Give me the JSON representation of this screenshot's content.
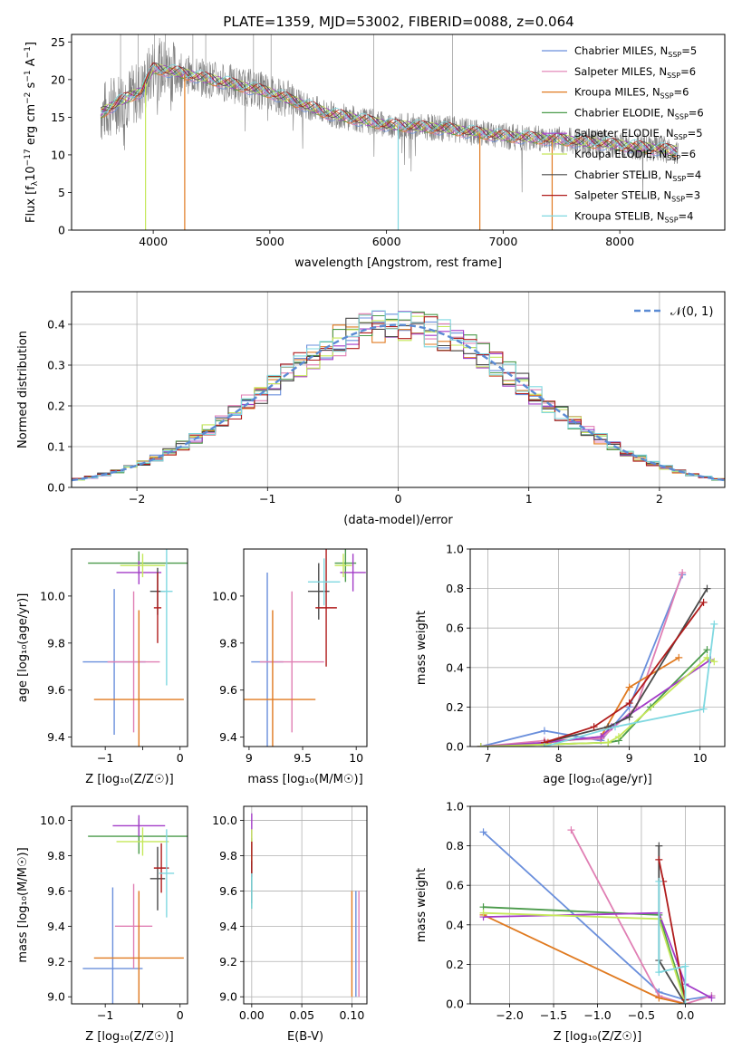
{
  "figure": {
    "title": "PLATE=1359, MJD=53002, FIBERID=0088, z=0.064"
  },
  "series_legend": [
    {
      "name": "Chabrier MILES",
      "nssp": "5",
      "color": "#6a8fdc"
    },
    {
      "name": "Salpeter MILES",
      "nssp": "6",
      "color": "#e07fb4"
    },
    {
      "name": "Kroupa MILES",
      "nssp": "6",
      "color": "#e07a20"
    },
    {
      "name": "Chabrier ELODIE",
      "nssp": "6",
      "color": "#4a9a4a"
    },
    {
      "name": "Salpeter ELODIE",
      "nssp": "5",
      "color": "#a33cc8"
    },
    {
      "name": "Kroupa ELODIE",
      "nssp": "6",
      "color": "#c5e85a"
    },
    {
      "name": "Chabrier STELIB",
      "nssp": "4",
      "color": "#4a4a4a"
    },
    {
      "name": "Salpeter STELIB",
      "nssp": "3",
      "color": "#b01c1c"
    },
    {
      "name": "Kroupa STELIB",
      "nssp": "4",
      "color": "#7fd8e0"
    }
  ],
  "chart_data": [
    {
      "id": "spectrum",
      "type": "line",
      "title": "PLATE=1359, MJD=53002, FIBERID=0088, z=0.064",
      "xlabel": "wavelength [Angstrom, rest frame]",
      "ylabel_parts": [
        "Flux [f",
        "λ",
        "10",
        "−17",
        " erg cm",
        "−2",
        " s",
        "−1",
        " A",
        "−1",
        "]"
      ],
      "xlim": [
        3300,
        8900
      ],
      "ylim": [
        0,
        26
      ],
      "xticks": [
        4000,
        5000,
        6000,
        7000,
        8000
      ],
      "yticks": [
        0,
        5,
        10,
        15,
        20,
        25
      ],
      "grid": false,
      "legend_position": "top-right",
      "observed_color": "#808080",
      "continuum_anchors": {
        "x": [
          3550,
          3700,
          3900,
          4000,
          4200,
          4500,
          5000,
          5500,
          6000,
          6500,
          7000,
          7500,
          8000,
          8500
        ],
        "y": [
          15.5,
          17,
          18.5,
          21.5,
          21,
          20,
          18.3,
          15.5,
          14,
          13.5,
          12.5,
          12,
          11.3,
          10.5
        ]
      },
      "absorption_dips": [
        {
          "x": 3934,
          "series": "Kroupa ELODIE"
        },
        {
          "x": 4270,
          "series": "Kroupa MILES"
        },
        {
          "x": 6100,
          "series": "Kroupa STELIB"
        },
        {
          "x": 6800,
          "series": "Kroupa MILES"
        },
        {
          "x": 7420,
          "series": "Kroupa MILES"
        }
      ]
    },
    {
      "id": "residuals",
      "type": "histogram",
      "xlabel": "(data-model)/error",
      "ylabel": "Normed distribution",
      "xlim": [
        -2.5,
        2.5
      ],
      "ylim": [
        0,
        0.48
      ],
      "xticks": [
        -2,
        -1,
        0,
        1,
        2
      ],
      "yticks": [
        0.0,
        0.1,
        0.2,
        0.3,
        0.4
      ],
      "grid": true,
      "legend_position": "top-right",
      "reference_curve_label": "𝒩(0, 1)",
      "reference_curve_color": "#5b8bd4",
      "bin_width": 0.1
    },
    {
      "id": "age-vs-Z",
      "type": "scatter",
      "xlabel": "Z [log₁₀(Z/Z☉)]",
      "ylabel": "age  [log₁₀(age/yr)]",
      "xlim": [
        -1.45,
        0.1
      ],
      "ylim": [
        9.36,
        10.2
      ],
      "xticks": [
        -1,
        -0.5,
        0
      ],
      "xticklabels": [
        "−1",
        "",
        "0"
      ],
      "yticks": [
        9.4,
        9.6,
        9.8,
        10.0
      ],
      "grid": false,
      "points": [
        {
          "series": "Chabrier MILES",
          "x": -0.88,
          "y": 9.72,
          "xerr": 0.42,
          "yerr": 0.31
        },
        {
          "series": "Salpeter MILES",
          "x": -0.62,
          "y": 9.72,
          "xerr": 0.35,
          "yerr": 0.3
        },
        {
          "series": "Kroupa MILES",
          "x": -0.55,
          "y": 9.56,
          "xerr": 0.6,
          "yerr": 0.38
        },
        {
          "series": "Chabrier ELODIE",
          "x": -0.55,
          "y": 10.14,
          "xerr": 0.68,
          "yerr": 0.05
        },
        {
          "series": "Salpeter ELODIE",
          "x": -0.55,
          "y": 10.1,
          "xerr": 0.3,
          "yerr": 0.05
        },
        {
          "series": "Kroupa ELODIE",
          "x": -0.5,
          "y": 10.13,
          "xerr": 0.3,
          "yerr": 0.05
        },
        {
          "series": "Chabrier STELIB",
          "x": -0.3,
          "y": 10.02,
          "xerr": 0.1,
          "yerr": 0.1
        },
        {
          "series": "Salpeter STELIB",
          "x": -0.3,
          "y": 9.95,
          "xerr": 0.05,
          "yerr": 0.15
        },
        {
          "series": "Kroupa STELIB",
          "x": -0.18,
          "y": 10.02,
          "xerr": 0.08,
          "yerr": 0.4
        }
      ]
    },
    {
      "id": "age-vs-mass",
      "type": "scatter",
      "xlabel": "mass [log₁₀(M/M☉)]",
      "ylabel": "",
      "xlim": [
        8.95,
        10.1
      ],
      "ylim": [
        9.36,
        10.2
      ],
      "xticks": [
        9.0,
        9.5,
        10.0
      ],
      "yticks": [
        9.4,
        9.6,
        9.8,
        10.0
      ],
      "grid": false,
      "points": [
        {
          "series": "Chabrier MILES",
          "x": 9.17,
          "y": 9.72,
          "xerr": 0.15,
          "yerr": 0.38
        },
        {
          "series": "Salpeter MILES",
          "x": 9.4,
          "y": 9.72,
          "xerr": 0.3,
          "yerr": 0.3
        },
        {
          "series": "Kroupa MILES",
          "x": 9.22,
          "y": 9.56,
          "xerr": 0.4,
          "yerr": 0.38
        },
        {
          "series": "Chabrier ELODIE",
          "x": 9.9,
          "y": 10.14,
          "xerr": 0.1,
          "yerr": 0.08
        },
        {
          "series": "Salpeter ELODIE",
          "x": 9.97,
          "y": 10.1,
          "xerr": 0.12,
          "yerr": 0.08
        },
        {
          "series": "Kroupa ELODIE",
          "x": 9.88,
          "y": 10.13,
          "xerr": 0.08,
          "yerr": 0.05
        },
        {
          "series": "Chabrier STELIB",
          "x": 9.65,
          "y": 10.02,
          "xerr": 0.1,
          "yerr": 0.12
        },
        {
          "series": "Salpeter STELIB",
          "x": 9.72,
          "y": 9.95,
          "xerr": 0.1,
          "yerr": 0.25
        },
        {
          "series": "Kroupa STELIB",
          "x": 9.7,
          "y": 10.06,
          "xerr": 0.15,
          "yerr": 0.1
        }
      ]
    },
    {
      "id": "mass-weight-vs-age",
      "type": "line",
      "xlabel": "age  [log₁₀(age/yr)]",
      "ylabel": "mass weight",
      "xlim": [
        6.75,
        10.35
      ],
      "ylim": [
        0,
        1.0
      ],
      "xticks": [
        7,
        8,
        9,
        10
      ],
      "yticks": [
        0.0,
        0.2,
        0.4,
        0.6,
        0.8,
        1.0
      ],
      "grid": true,
      "series": [
        {
          "name": "Chabrier MILES",
          "x": [
            6.9,
            7.8,
            8.6,
            9.0,
            9.75
          ],
          "y": [
            0.0,
            0.08,
            0.03,
            0.2,
            0.87
          ]
        },
        {
          "name": "Salpeter MILES",
          "x": [
            6.9,
            7.8,
            8.6,
            9.1,
            9.75
          ],
          "y": [
            0.0,
            0.03,
            0.04,
            0.2,
            0.88
          ]
        },
        {
          "name": "Kroupa MILES",
          "x": [
            6.9,
            7.85,
            8.6,
            9.0,
            9.7
          ],
          "y": [
            0.0,
            0.02,
            0.05,
            0.3,
            0.45
          ]
        },
        {
          "name": "Chabrier ELODIE",
          "x": [
            6.9,
            7.8,
            8.7,
            8.85,
            9.3,
            10.1
          ],
          "y": [
            0.0,
            0.01,
            0.02,
            0.03,
            0.2,
            0.49
          ]
        },
        {
          "name": "Salpeter ELODIE",
          "x": [
            6.9,
            7.8,
            8.6,
            8.75,
            10.15
          ],
          "y": [
            0.0,
            0.02,
            0.05,
            0.1,
            0.44
          ]
        },
        {
          "name": "Kroupa ELODIE",
          "x": [
            6.9,
            7.8,
            8.7,
            8.85,
            10.1,
            10.2
          ],
          "y": [
            0.0,
            0.01,
            0.02,
            0.05,
            0.45,
            0.43
          ]
        },
        {
          "name": "Chabrier STELIB",
          "x": [
            7.8,
            8.7,
            9.0,
            10.1
          ],
          "y": [
            0.02,
            0.1,
            0.15,
            0.8
          ]
        },
        {
          "name": "Salpeter STELIB",
          "x": [
            7.8,
            8.5,
            9.0,
            10.05
          ],
          "y": [
            0.02,
            0.1,
            0.22,
            0.73
          ]
        },
        {
          "name": "Kroupa STELIB",
          "x": [
            7.8,
            8.8,
            10.05,
            10.2
          ],
          "y": [
            0.0,
            0.1,
            0.19,
            0.62
          ]
        }
      ]
    },
    {
      "id": "mass-vs-Z",
      "type": "scatter",
      "xlabel": "Z [log₁₀(Z/Z☉)]",
      "ylabel": "mass [log₁₀(M/M☉)]",
      "xlim": [
        -1.45,
        0.1
      ],
      "ylim": [
        8.96,
        10.08
      ],
      "xticks": [
        -1,
        -0.5,
        0
      ],
      "xticklabels": [
        "−1",
        "",
        "0"
      ],
      "yticks": [
        9.0,
        9.2,
        9.4,
        9.6,
        9.8,
        10.0
      ],
      "grid": false,
      "points": [
        {
          "series": "Chabrier MILES",
          "x": -0.9,
          "y": 9.16,
          "xerr": 0.4,
          "yerr": 0.46
        },
        {
          "series": "Salpeter MILES",
          "x": -0.62,
          "y": 9.4,
          "xerr": 0.25,
          "yerr": 0.24
        },
        {
          "series": "Kroupa MILES",
          "x": -0.55,
          "y": 9.22,
          "xerr": 0.6,
          "yerr": 0.38
        },
        {
          "series": "Chabrier ELODIE",
          "x": -0.55,
          "y": 9.91,
          "xerr": 0.68,
          "yerr": 0.1
        },
        {
          "series": "Salpeter ELODIE",
          "x": -0.55,
          "y": 9.97,
          "xerr": 0.35,
          "yerr": 0.06
        },
        {
          "series": "Kroupa ELODIE",
          "x": -0.5,
          "y": 9.88,
          "xerr": 0.35,
          "yerr": 0.08
        },
        {
          "series": "Chabrier STELIB",
          "x": -0.3,
          "y": 9.67,
          "xerr": 0.1,
          "yerr": 0.18
        },
        {
          "series": "Salpeter STELIB",
          "x": -0.25,
          "y": 9.73,
          "xerr": 0.1,
          "yerr": 0.14
        },
        {
          "series": "Kroupa STELIB",
          "x": -0.18,
          "y": 9.7,
          "xerr": 0.1,
          "yerr": 0.25
        }
      ]
    },
    {
      "id": "mass-vs-ebv",
      "type": "scatter",
      "xlabel": "E(B-V)",
      "ylabel": "",
      "xlim": [
        -0.008,
        0.115
      ],
      "ylim": [
        8.96,
        10.08
      ],
      "xticks": [
        0.0,
        0.05,
        0.1
      ],
      "xticklabels": [
        "0.00",
        "0.05",
        "0.10"
      ],
      "yticks": [
        9.0,
        9.2,
        9.4,
        9.6,
        9.8,
        10.0
      ],
      "grid": true,
      "points": [
        {
          "series": "Chabrier MILES",
          "x": 0.104,
          "y": 9.3,
          "xerr": 0,
          "yerr": 0.3
        },
        {
          "series": "Salpeter MILES",
          "x": 0.107,
          "y": 9.3,
          "xerr": 0,
          "yerr": 0.3
        },
        {
          "series": "Kroupa MILES",
          "x": 0.1,
          "y": 9.3,
          "xerr": 0,
          "yerr": 0.3
        },
        {
          "series": "Chabrier ELODIE",
          "x": 0.0,
          "y": 9.7,
          "xerr": 0,
          "yerr": 0.2
        },
        {
          "series": "Salpeter ELODIE",
          "x": 0.0,
          "y": 9.92,
          "xerr": 0,
          "yerr": 0.12
        },
        {
          "series": "Kroupa ELODIE",
          "x": 0.0,
          "y": 9.85,
          "xerr": 0,
          "yerr": 0.1
        },
        {
          "series": "Chabrier STELIB",
          "x": 0.0,
          "y": 9.65,
          "xerr": 0,
          "yerr": 0.12
        },
        {
          "series": "Salpeter STELIB",
          "x": 0.0,
          "y": 9.78,
          "xerr": 0,
          "yerr": 0.1
        },
        {
          "series": "Kroupa STELIB",
          "x": 0.0,
          "y": 9.6,
          "xerr": 0,
          "yerr": 0.1
        }
      ]
    },
    {
      "id": "mass-weight-vs-Z",
      "type": "line",
      "xlabel": "Z [log₁₀(Z/Z☉)]",
      "ylabel": "mass weight",
      "xlim": [
        -2.45,
        0.45
      ],
      "ylim": [
        0,
        1.0
      ],
      "xticks": [
        -2.0,
        -1.5,
        -1.0,
        -0.5,
        0.0
      ],
      "xticklabels": [
        "−2.0",
        "−1.5",
        "−1.0",
        "−0.5",
        "0.0"
      ],
      "yticks": [
        0.0,
        0.2,
        0.4,
        0.6,
        0.8,
        1.0
      ],
      "grid": true,
      "series": [
        {
          "name": "Chabrier MILES",
          "x": [
            -2.3,
            -0.3,
            0.0,
            0.3
          ],
          "y": [
            0.87,
            0.06,
            0.02,
            0.04
          ]
        },
        {
          "name": "Salpeter MILES",
          "x": [
            -1.3,
            -0.3,
            0.0,
            0.3
          ],
          "y": [
            0.88,
            0.04,
            0.0,
            0.04
          ]
        },
        {
          "name": "Kroupa MILES",
          "x": [
            -2.3,
            -0.3,
            0.0
          ],
          "y": [
            0.45,
            0.03,
            0.0
          ]
        },
        {
          "name": "Chabrier ELODIE",
          "x": [
            -2.3,
            -0.3,
            0.0
          ],
          "y": [
            0.49,
            0.45,
            0.02
          ]
        },
        {
          "name": "Salpeter ELODIE",
          "x": [
            -2.3,
            -0.3,
            0.0,
            0.3
          ],
          "y": [
            0.44,
            0.46,
            0.1,
            0.03
          ]
        },
        {
          "name": "Kroupa ELODIE",
          "x": [
            -2.3,
            -0.3,
            0.0
          ],
          "y": [
            0.46,
            0.43,
            0.0
          ]
        },
        {
          "name": "Chabrier STELIB",
          "x": [
            -0.3,
            -0.3,
            0.0
          ],
          "y": [
            0.8,
            0.22,
            0.0
          ]
        },
        {
          "name": "Salpeter STELIB",
          "x": [
            -0.3,
            -0.25,
            0.0
          ],
          "y": [
            0.73,
            0.62,
            0.02
          ]
        },
        {
          "name": "Kroupa STELIB",
          "x": [
            -0.3,
            -0.3,
            0.0,
            0.0
          ],
          "y": [
            0.62,
            0.16,
            0.19,
            0.0
          ]
        }
      ]
    }
  ]
}
